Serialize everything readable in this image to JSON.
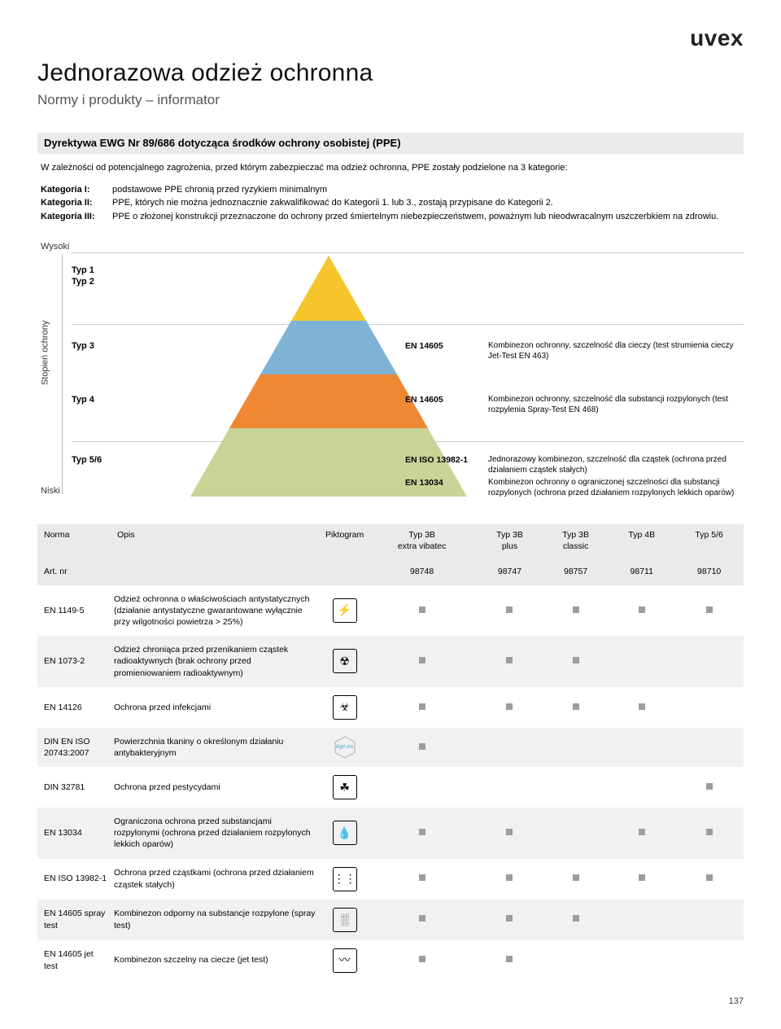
{
  "brand": "uvex",
  "title": "Jednorazowa odzież ochronna",
  "subtitle": "Normy i produkty – informator",
  "section_header": "Dyrektywa EWG Nr 89/686 dotycząca środków ochrony osobistej (PPE)",
  "intro": "W zależności od potencjalnego zagrożenia, przed którym zabezpieczać ma odzież ochronna, PPE zostały podzielone na 3 kategorie:",
  "categories": [
    {
      "label": "Kategoria I:",
      "desc": "podstawowe PPE chronią przed ryzykiem minimalnym"
    },
    {
      "label": "Kategoria II:",
      "desc": "PPE, których nie można jednoznacznie zakwalifikować do Kategorii 1. lub 3., zostają przypisane do Kategorii 2."
    },
    {
      "label": "Kategoria III:",
      "desc": "PPE o złożonej konstrukcji przeznaczone do ochrony przed śmiertelnym niebezpieczeństwem, poważnym lub nieodwracalnym uszczerbkiem na zdrowiu."
    }
  ],
  "axis": {
    "label": "Stopień ochrony",
    "high": "Wysoki",
    "low": "Niski"
  },
  "pyramid_colors": {
    "top": "#f6c52b",
    "mid1": "#7eb3d6",
    "mid2": "#ef8733",
    "bottom": "#c8d496"
  },
  "levels": {
    "typ12": {
      "line1": "Typ 1",
      "line2": "Typ 2"
    },
    "typ3": {
      "label": "Typ 3",
      "norm": "EN 14605",
      "desc": "Kombinezon ochronny, szczelność dla cieczy (test strumienia cieczy Jet-Test EN 463)"
    },
    "typ4": {
      "label": "Typ 4",
      "norm": "EN 14605",
      "desc": "Kombinezon ochronny, szczelność dla substancji rozpylonych (test rozpylenia Spray-Test EN 468)"
    },
    "typ56": {
      "label": "Typ 5/6",
      "norm1": "EN ISO 13982-1",
      "desc1": "Jednorazowy kombinezon, szczelność dla cząstek (ochrona przed działaniem cząstek stałych)",
      "norm2": "EN 13034",
      "desc2": "Kombinezon ochronny o ograniczonej szczelności dla substancji rozpylonych (ochrona przed działaniem rozpylonych lekkich oparów)"
    }
  },
  "table": {
    "head": {
      "norma": "Norma",
      "opis": "Opis",
      "pikto": "Piktogram",
      "artnr": "Art. nr",
      "cols": [
        {
          "line1": "Typ 3B",
          "line2": "extra vibatec",
          "art": "98748"
        },
        {
          "line1": "Typ 3B",
          "line2": "plus",
          "art": "98747"
        },
        {
          "line1": "Typ 3B",
          "line2": "classic",
          "art": "98757"
        },
        {
          "line1": "Typ 4B",
          "line2": "",
          "art": "98711"
        },
        {
          "line1": "Typ 5/6",
          "line2": "",
          "art": "98710"
        }
      ]
    },
    "rows": [
      {
        "norma": "EN 1149-5",
        "opis": "Odzież ochronna o właściwościach antystatycznych (działanie antystatyczne gwarantowane wyłącznie przy wilgotności powietrza > 25%)",
        "glyph": "⚡",
        "vals": [
          true,
          true,
          true,
          true,
          true
        ],
        "alt": false
      },
      {
        "norma": "EN 1073-2",
        "opis": "Odzież chroniąca przed przenikaniem cząstek radioaktywnych (brak ochrony przed promieniowaniem radioaktywnym)",
        "glyph": "☢",
        "vals": [
          true,
          true,
          true,
          false,
          false
        ],
        "alt": true
      },
      {
        "norma": "EN 14126",
        "opis": "Ochrona przed infekcjami",
        "glyph": "☣",
        "vals": [
          true,
          true,
          true,
          true,
          false
        ],
        "alt": false
      },
      {
        "norma": "DIN EN ISO 20743:2007",
        "opis": "Powierzchnia tkaniny o określonym działaniu antybakteryjnym",
        "glyph": "hex",
        "vals": [
          true,
          false,
          false,
          false,
          false
        ],
        "alt": true
      },
      {
        "norma": "DIN 32781",
        "opis": "Ochrona przed pestycydami",
        "glyph": "☘",
        "vals": [
          false,
          false,
          false,
          false,
          true
        ],
        "alt": false
      },
      {
        "norma": "EN 13034",
        "opis": "Ograniczona ochrona przed substancjami rozpylonymi (ochrona przed działaniem rozpylonych lekkich oparów)",
        "glyph": "💧",
        "vals": [
          true,
          true,
          false,
          true,
          true
        ],
        "alt": true
      },
      {
        "norma": "EN ISO 13982-1",
        "opis": "Ochrona przed cząstkami (ochrona przed działaniem cząstek stałych)",
        "glyph": "⋮⋮",
        "vals": [
          true,
          true,
          true,
          true,
          true
        ],
        "alt": false
      },
      {
        "norma": "EN 14605 spray test",
        "opis": "Kombinezon odporny na substancje rozpylone (spray test)",
        "glyph": "░",
        "vals": [
          true,
          true,
          true,
          false,
          false
        ],
        "alt": true
      },
      {
        "norma": "EN 14605 jet test",
        "opis": "Kombinezon szczelny na ciecze (jet test)",
        "glyph": "〰",
        "vals": [
          true,
          true,
          false,
          false,
          false
        ],
        "alt": false
      }
    ]
  },
  "page_number": "137"
}
